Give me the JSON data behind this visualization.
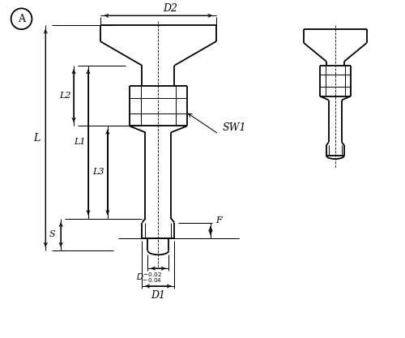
{
  "bg_color": "#ffffff",
  "line_color": "#000000",
  "lw": 1.3,
  "tlw": 0.7,
  "dlw": 0.75,
  "circle_label": "A",
  "label_SW1": "SW1",
  "label_D2": "D2",
  "label_L": "L",
  "label_L1": "L1",
  "label_L2": "L2",
  "label_L3": "L3",
  "label_S": "S",
  "label_F": "F",
  "label_D1": "D1"
}
